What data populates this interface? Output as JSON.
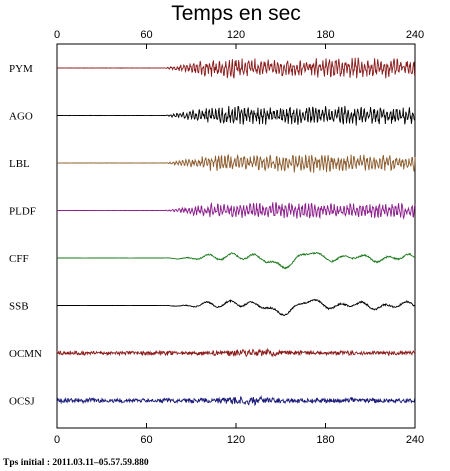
{
  "chart_data": {
    "type": "line",
    "title": "Temps en sec",
    "xlim": [
      0,
      240
    ],
    "x_ticks": [
      0,
      60,
      120,
      180,
      240
    ],
    "x_tick_labels": [
      "0",
      "60",
      "120",
      "180",
      "240"
    ],
    "grid": false,
    "onset_time": 80,
    "series": [
      {
        "name": "PYM",
        "color": "#8b1a1a",
        "style": "high-frequency",
        "amplitude": 1.0
      },
      {
        "name": "AGO",
        "color": "#000000",
        "style": "high-frequency",
        "amplitude": 1.0
      },
      {
        "name": "LBL",
        "color": "#8b5a2b",
        "style": "high-frequency",
        "amplitude": 0.9
      },
      {
        "name": "PLDF",
        "color": "#8b1a8b",
        "style": "high-frequency",
        "amplitude": 0.8
      },
      {
        "name": "CFF",
        "color": "#1a7a1a",
        "style": "low-frequency",
        "amplitude": 0.7
      },
      {
        "name": "SSB",
        "color": "#000000",
        "style": "low-frequency",
        "amplitude": 0.7
      },
      {
        "name": "OCMN",
        "color": "#8b1a1a",
        "style": "noisy",
        "amplitude": 0.45
      },
      {
        "name": "OCSJ",
        "color": "#1a1a7a",
        "style": "noisy",
        "amplitude": 0.5
      }
    ]
  },
  "footer_text": "Tps initial : 2011.03.11–05.57.59.880"
}
